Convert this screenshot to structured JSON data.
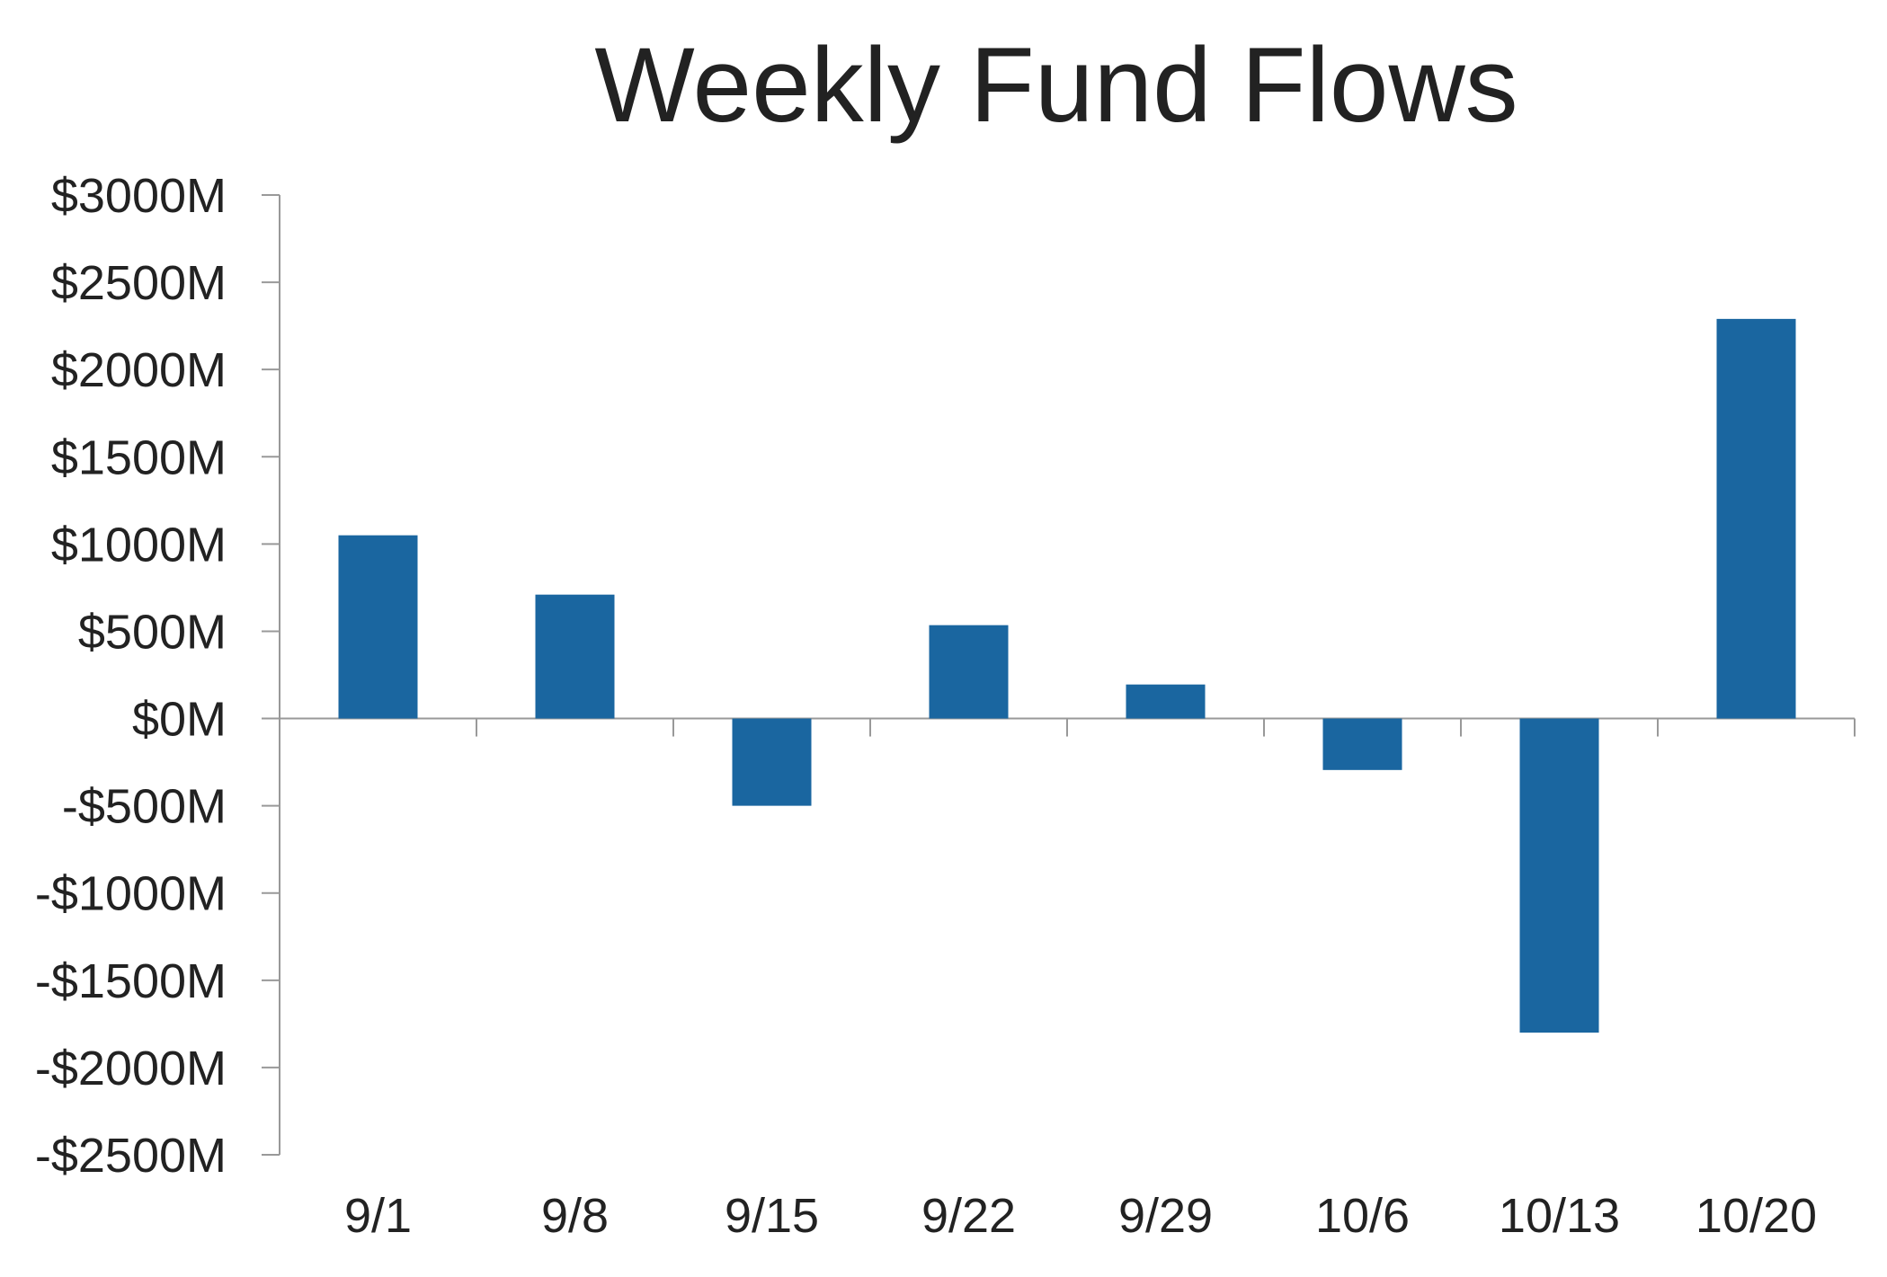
{
  "chart_data": {
    "type": "bar",
    "title": "Weekly Fund Flows",
    "xlabel": "",
    "ylabel": "",
    "categories": [
      "9/1",
      "9/8",
      "9/15",
      "9/22",
      "9/29",
      "10/6",
      "10/13",
      "10/20"
    ],
    "values": [
      1050,
      710,
      -500,
      535,
      195,
      -295,
      -1800,
      2290
    ],
    "ylim": [
      -2500,
      3000
    ],
    "yticks": [
      3000,
      2500,
      2000,
      1500,
      1000,
      500,
      0,
      -500,
      -1000,
      -1500,
      -2000,
      -2500
    ],
    "ytick_labels": [
      "$3000M",
      "$2500M",
      "$2000M",
      "$1500M",
      "$1000M",
      "$500M",
      "$0M",
      "-$500M",
      "-$1000M",
      "-$1500M",
      "-$2000M",
      "-$2500M"
    ],
    "grid": false,
    "legend": "none",
    "colors": {
      "bar": "#1a66a0",
      "axis": "#999999",
      "text": "#222222"
    }
  }
}
